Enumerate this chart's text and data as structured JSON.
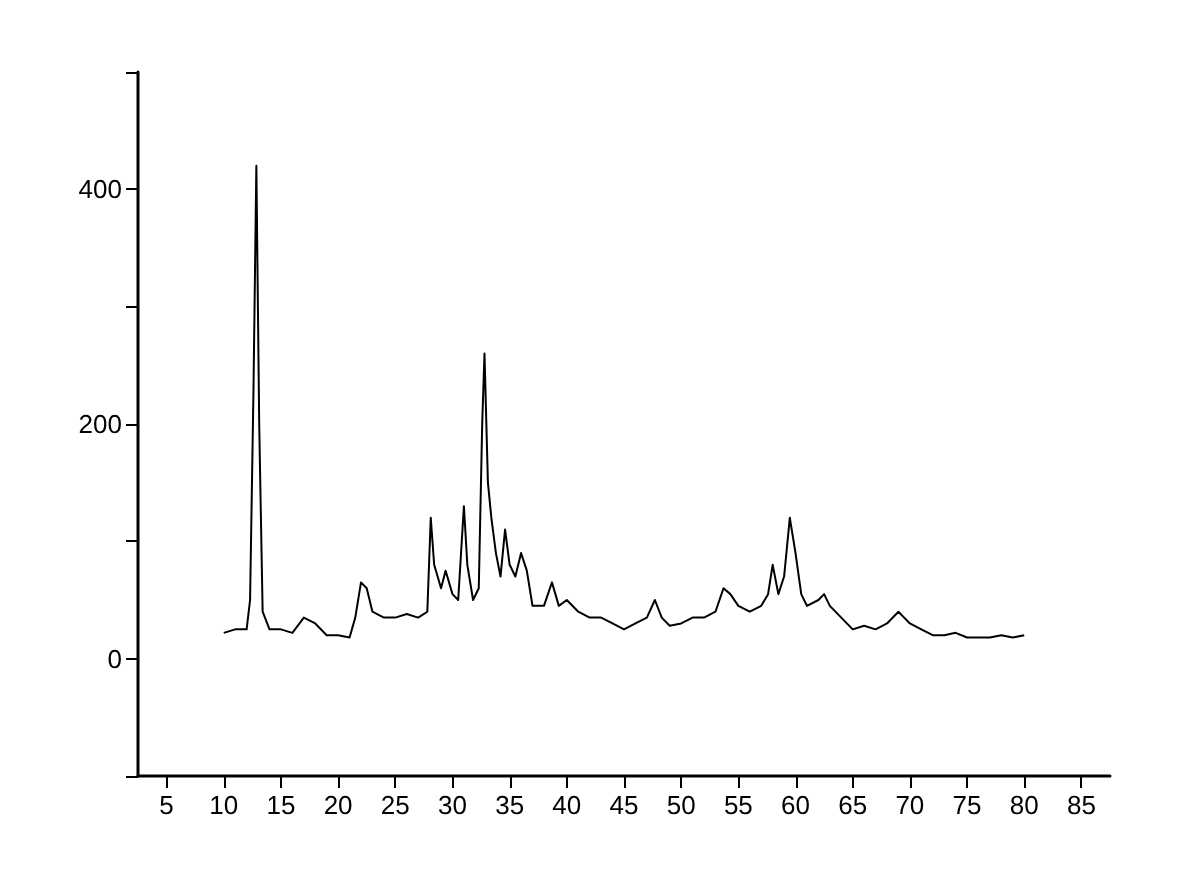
{
  "chart_data": {
    "type": "line",
    "color": "#000000",
    "line_style": "solid",
    "marker": "none",
    "grid": false,
    "x": [
      10,
      11,
      12,
      12.3,
      12.6,
      12.85,
      13.1,
      13.4,
      14,
      15,
      16,
      17,
      18,
      19,
      20,
      21,
      21.5,
      22,
      22.5,
      23,
      24,
      25,
      26,
      27,
      27.8,
      28.1,
      28.4,
      29,
      29.4,
      30,
      30.5,
      31,
      31.3,
      31.8,
      32.3,
      32.6,
      32.8,
      33.1,
      33.4,
      33.8,
      34.2,
      34.6,
      35,
      35.5,
      36,
      36.5,
      37,
      38,
      38.7,
      39.3,
      40,
      41,
      42,
      43,
      44,
      45,
      46,
      47,
      47.7,
      48.3,
      49,
      50,
      51,
      52,
      53,
      53.7,
      54.3,
      55,
      56,
      57,
      57.6,
      58,
      58.5,
      59,
      59.5,
      60,
      60.5,
      61,
      62,
      62.5,
      63,
      64,
      65,
      66,
      67,
      68,
      69,
      69.5,
      70,
      71,
      72,
      73,
      74,
      75,
      76,
      77,
      78,
      79,
      80
    ],
    "values": [
      22,
      25,
      25,
      50,
      230,
      420,
      200,
      40,
      25,
      25,
      22,
      35,
      30,
      20,
      20,
      18,
      35,
      65,
      60,
      40,
      35,
      35,
      38,
      35,
      40,
      120,
      80,
      60,
      75,
      55,
      50,
      130,
      80,
      50,
      60,
      200,
      260,
      150,
      120,
      90,
      70,
      110,
      80,
      70,
      90,
      75,
      45,
      45,
      65,
      45,
      50,
      40,
      35,
      35,
      30,
      25,
      30,
      35,
      50,
      35,
      28,
      30,
      35,
      35,
      40,
      60,
      55,
      45,
      40,
      45,
      55,
      80,
      55,
      70,
      120,
      90,
      55,
      45,
      50,
      55,
      45,
      35,
      25,
      28,
      25,
      30,
      40,
      35,
      30,
      25,
      20,
      20,
      22,
      18,
      18,
      18,
      20,
      18,
      20
    ],
    "xlim": [
      2.5,
      87.5
    ],
    "xticks": [
      5,
      10,
      15,
      20,
      25,
      30,
      35,
      40,
      45,
      50,
      55,
      60,
      65,
      70,
      75,
      80,
      85
    ],
    "ylim": [
      -100,
      500
    ],
    "yticks": [
      {
        "value": -100,
        "label": null
      },
      0,
      {
        "value": 100,
        "label": null
      },
      200,
      {
        "value": 300,
        "label": null
      },
      400,
      {
        "value": 500,
        "label": null
      }
    ]
  }
}
